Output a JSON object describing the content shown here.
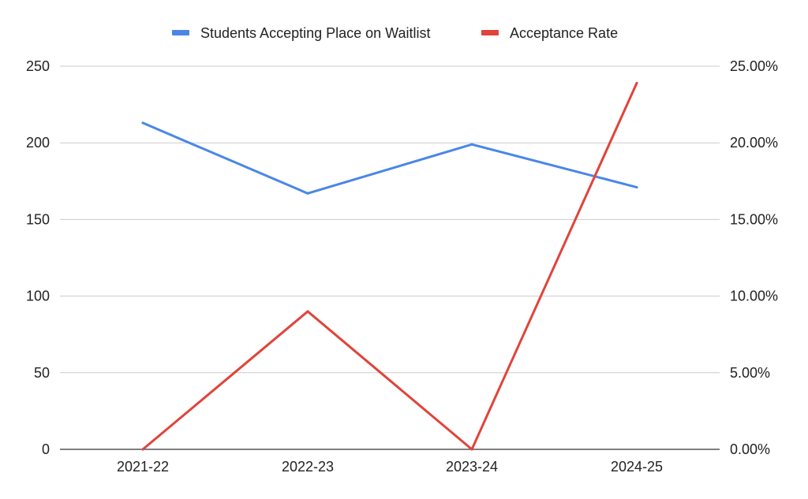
{
  "chart_data": {
    "type": "line",
    "categories": [
      "2021-22",
      "2022-23",
      "2023-24",
      "2024-25"
    ],
    "series": [
      {
        "name": "Students Accepting Place on Waitlist",
        "axis": "left",
        "color": "#4a86e8",
        "values": [
          213,
          167,
          199,
          171
        ]
      },
      {
        "name": "Acceptance Rate",
        "axis": "right",
        "color": "#e0443a",
        "values": [
          0.0,
          9.0,
          0.0,
          23.9
        ]
      }
    ],
    "y_left": {
      "ylim": [
        0,
        250
      ],
      "ticks": [
        0,
        50,
        100,
        150,
        200,
        250
      ],
      "tick_labels": [
        "0",
        "50",
        "100",
        "150",
        "200",
        "250"
      ]
    },
    "y_right": {
      "ylim": [
        0,
        25
      ],
      "ticks": [
        0,
        5,
        10,
        15,
        20,
        25
      ],
      "tick_labels": [
        "0.00%",
        "5.00%",
        "10.00%",
        "15.00%",
        "20.00%",
        "25.00%"
      ]
    },
    "grid": true,
    "legend_position": "top",
    "colors": {
      "gridline": "#cccccc",
      "baseline": "#333333",
      "text": "#222222"
    }
  }
}
